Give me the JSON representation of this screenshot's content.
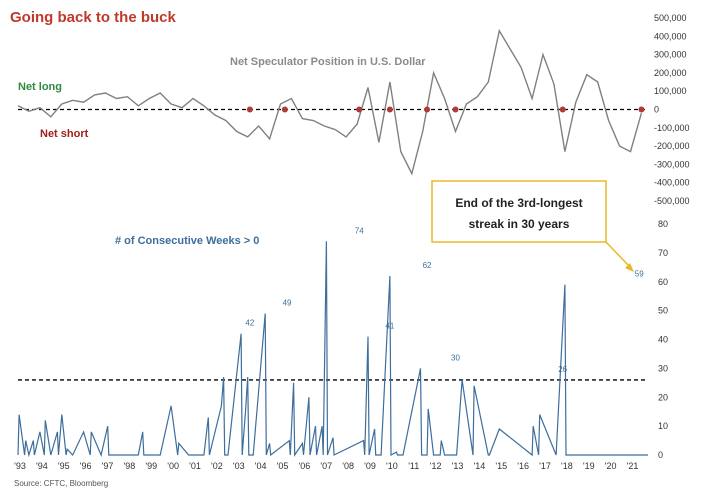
{
  "title": "Going back to the buck",
  "source": "Source: CFTC, Bloomberg",
  "callout": {
    "line1": "End of the 3rd-longest",
    "line2": "streak in 30 years",
    "border_color": "#e8b82a"
  },
  "colors": {
    "title": "#c0392b",
    "position_line": "#808080",
    "streak_line": "#3d6e9c",
    "marker": "#b03a3a"
  },
  "chart_data": [
    {
      "type": "line",
      "title": "Net Speculator Position in U.S. Dollar",
      "labels": {
        "net_long": "Net long",
        "net_short": "Net short"
      },
      "xlim": [
        1993,
        2021.8
      ],
      "ylim": [
        -500000,
        500000
      ],
      "y_ticks": [
        "500,000",
        "400,000",
        "300,000",
        "200,000",
        "100,000",
        "0",
        "-100,000",
        "-200,000",
        "-300,000",
        "-400,000",
        "-500,000"
      ],
      "y_tick_values": [
        500000,
        400000,
        300000,
        200000,
        100000,
        0,
        -100000,
        -200000,
        -300000,
        -400000,
        -500000
      ],
      "reference_line": 0,
      "x": [
        1993.0,
        1993.5,
        1994.0,
        1994.5,
        1995.0,
        1995.5,
        1996.0,
        1996.5,
        1997.0,
        1997.5,
        1998.0,
        1998.5,
        1999.0,
        1999.5,
        2000.0,
        2000.5,
        2001.0,
        2001.5,
        2002.0,
        2002.5,
        2003.0,
        2003.5,
        2004.0,
        2004.5,
        2005.0,
        2005.5,
        2006.0,
        2006.5,
        2007.0,
        2007.5,
        2008.0,
        2008.5,
        2009.0,
        2009.5,
        2010.0,
        2010.5,
        2011.0,
        2011.5,
        2012.0,
        2012.5,
        2013.0,
        2013.5,
        2014.0,
        2014.5,
        2015.0,
        2015.5,
        2016.0,
        2016.5,
        2017.0,
        2017.5,
        2018.0,
        2018.5,
        2019.0,
        2019.5,
        2020.0,
        2020.5,
        2021.0,
        2021.5
      ],
      "values": [
        20000,
        -10000,
        10000,
        -40000,
        30000,
        50000,
        40000,
        80000,
        90000,
        60000,
        70000,
        20000,
        60000,
        90000,
        30000,
        10000,
        60000,
        20000,
        -30000,
        -60000,
        -120000,
        -150000,
        -90000,
        -160000,
        30000,
        60000,
        -50000,
        -60000,
        -90000,
        -110000,
        -150000,
        -80000,
        120000,
        -180000,
        150000,
        -230000,
        -350000,
        -120000,
        200000,
        60000,
        -120000,
        30000,
        70000,
        150000,
        430000,
        330000,
        230000,
        60000,
        300000,
        140000,
        -230000,
        40000,
        190000,
        150000,
        -60000,
        -200000,
        -230000,
        -20000
      ],
      "markers_at_zero_x": [
        2003.6,
        2005.2,
        2008.6,
        2010.0,
        2011.7,
        2013.0,
        2017.9,
        2021.5
      ]
    },
    {
      "type": "line",
      "title": "# of Consecutive Weeks > 0",
      "xlim": [
        1993,
        2021.8
      ],
      "ylim": [
        0,
        80
      ],
      "y_ticks": [
        "80",
        "70",
        "60",
        "50",
        "40",
        "30",
        "20",
        "10",
        "0"
      ],
      "y_tick_values": [
        80,
        70,
        60,
        50,
        40,
        30,
        20,
        10,
        0
      ],
      "x_tick_labels": [
        "'93",
        "'94",
        "'95",
        "'96",
        "'97",
        "'98",
        "'99",
        "'00",
        "'01",
        "'02",
        "'03",
        "'04",
        "'05",
        "'06",
        "'07",
        "'08",
        "'09",
        "'10",
        "'11",
        "'12",
        "'13",
        "'14",
        "'15",
        "'16",
        "'17",
        "'18",
        "'19",
        "'20",
        "'21"
      ],
      "x_tick_values": [
        1993,
        1994,
        1995,
        1996,
        1997,
        1998,
        1999,
        2000,
        2001,
        2002,
        2003,
        2004,
        2005,
        2006,
        2007,
        2008,
        2009,
        2010,
        2011,
        2012,
        2013,
        2014,
        2015,
        2016,
        2017,
        2018,
        2019,
        2020,
        2021
      ],
      "reference_line": 26,
      "x": [
        1993.0,
        1993.05,
        1993.3,
        1993.35,
        1993.5,
        1993.7,
        1993.75,
        1994.0,
        1994.2,
        1994.25,
        1994.5,
        1994.8,
        1994.85,
        1995.0,
        1995.2,
        1995.25,
        1995.5,
        1996.0,
        1996.3,
        1996.35,
        1996.8,
        1997.1,
        1997.15,
        1997.5,
        1998.5,
        1998.7,
        1998.75,
        1999.5,
        2000.0,
        2000.3,
        2000.35,
        2000.8,
        2001.5,
        2001.7,
        2001.75,
        2002.3,
        2002.4,
        2002.45,
        2002.6,
        2003.2,
        2003.25,
        2003.4,
        2003.5,
        2003.55,
        2003.7,
        2003.75,
        2004.3,
        2004.35,
        2004.5,
        2004.55,
        2005.4,
        2005.45,
        2005.6,
        2005.65,
        2006.0,
        2006.05,
        2006.3,
        2006.35,
        2006.6,
        2006.65,
        2006.9,
        2006.95,
        2007.1,
        2007.15,
        2007.4,
        2007.45,
        2008.8,
        2008.85,
        2009.0,
        2009.05,
        2009.3,
        2009.35,
        2009.6,
        2010.0,
        2010.05,
        2010.3,
        2010.35,
        2010.6,
        2011.4,
        2011.45,
        2011.7,
        2011.75,
        2012.0,
        2012.3,
        2012.35,
        2012.5,
        2013.0,
        2013.05,
        2013.3,
        2013.8,
        2013.85,
        2014.5,
        2014.55,
        2015.0,
        2016.5,
        2016.55,
        2016.8,
        2016.85,
        2017.6,
        2018.0,
        2018.05,
        2018.3,
        2018.35,
        2018.5,
        2020.2,
        2020.25,
        2020.4,
        2020.45,
        2020.6,
        2020.65,
        2020.8,
        2021.5,
        2021.55,
        2021.8
      ],
      "values": [
        0,
        14,
        0,
        5,
        0,
        5,
        0,
        8,
        0,
        12,
        0,
        8,
        0,
        14,
        0,
        2,
        0,
        8,
        0,
        8,
        0,
        10,
        0,
        0,
        0,
        8,
        0,
        0,
        17,
        0,
        4,
        0,
        0,
        13,
        0,
        17,
        27,
        0,
        0,
        42,
        0,
        15,
        27,
        0,
        0,
        0,
        49,
        0,
        4,
        0,
        5,
        0,
        25,
        0,
        4,
        0,
        20,
        0,
        10,
        0,
        10,
        0,
        74,
        0,
        6,
        0,
        5,
        0,
        41,
        0,
        9,
        0,
        0,
        62,
        0,
        1,
        0,
        0,
        30,
        0,
        0,
        16,
        0,
        0,
        5,
        0,
        0,
        0,
        26,
        0,
        24,
        0,
        0,
        9,
        0,
        10,
        0,
        14,
        0,
        59,
        0,
        0,
        0,
        0,
        0,
        0,
        0,
        0,
        0,
        0,
        0,
        0,
        0,
        0
      ],
      "peaks": [
        {
          "label": "42",
          "x": 2003.6,
          "value": 42
        },
        {
          "label": "49",
          "x": 2005.3,
          "value": 49
        },
        {
          "label": "74",
          "x": 2008.6,
          "value": 74
        },
        {
          "label": "41",
          "x": 2010.0,
          "value": 41
        },
        {
          "label": "62",
          "x": 2011.7,
          "value": 62
        },
        {
          "label": "30",
          "x": 2013.0,
          "value": 30
        },
        {
          "label": "26",
          "x": 2017.9,
          "value": 26
        },
        {
          "label": "59",
          "x": 2021.4,
          "value": 59
        }
      ]
    }
  ]
}
